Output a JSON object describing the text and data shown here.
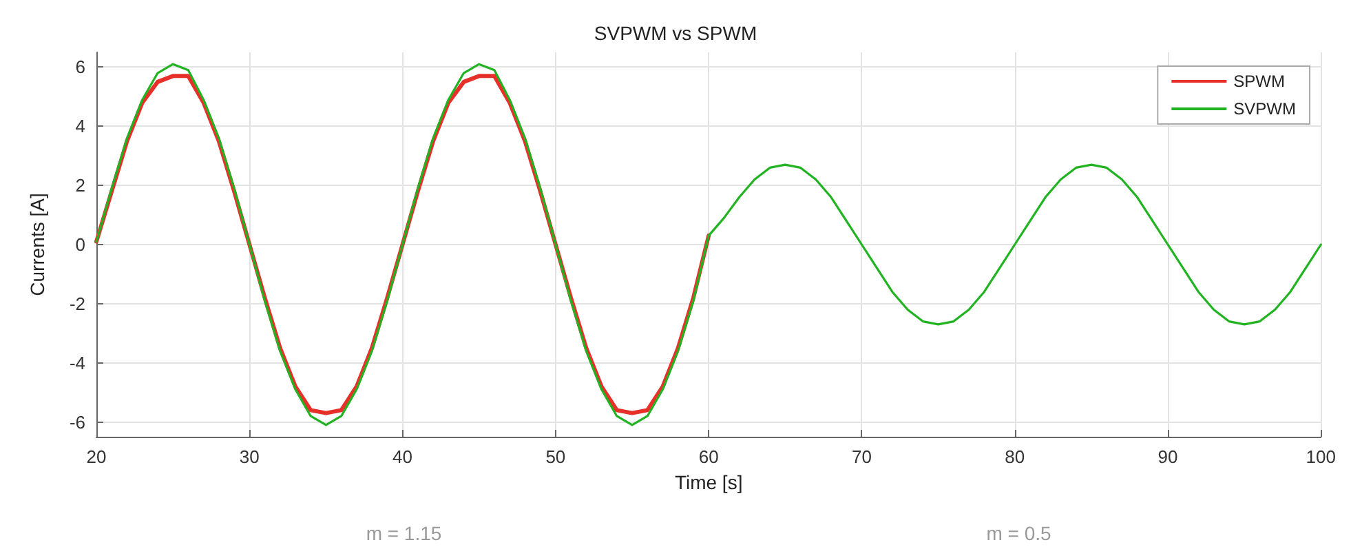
{
  "chart_data": {
    "type": "line",
    "title": "SVPWM vs SPWM",
    "xlabel": "Time [s]",
    "ylabel": "Currents [A]",
    "x": [
      20,
      21,
      22,
      23,
      24,
      25,
      26,
      27,
      28,
      29,
      30,
      31,
      32,
      33,
      34,
      35,
      36,
      37,
      38,
      39,
      40,
      41,
      42,
      43,
      44,
      45,
      46,
      47,
      48,
      49,
      50,
      51,
      52,
      53,
      54,
      55,
      56,
      57,
      58,
      59,
      60,
      61,
      62,
      63,
      64,
      65,
      66,
      67,
      68,
      69,
      70,
      71,
      72,
      73,
      74,
      75,
      76,
      77,
      78,
      79,
      80,
      81,
      82,
      83,
      84,
      85,
      86,
      87,
      88,
      89,
      90,
      91,
      92,
      93,
      94,
      95,
      96,
      97,
      98,
      99,
      100
    ],
    "series": [
      {
        "name": "SPWM",
        "color": "#e8302a",
        "values": [
          0.1,
          1.8,
          3.5,
          4.8,
          5.5,
          5.7,
          5.7,
          4.8,
          3.5,
          1.8,
          0,
          -1.8,
          -3.5,
          -4.8,
          -5.6,
          -5.7,
          -5.6,
          -4.8,
          -3.5,
          -1.8,
          0,
          1.8,
          3.5,
          4.8,
          5.5,
          5.7,
          5.7,
          4.8,
          3.5,
          1.8,
          0,
          -1.8,
          -3.5,
          -4.8,
          -5.6,
          -5.7,
          -5.6,
          -4.8,
          -3.5,
          -1.8,
          0.3,
          null,
          null,
          null,
          null,
          null,
          null,
          null,
          null,
          null,
          null,
          null,
          null,
          null,
          null,
          null,
          null,
          null,
          null,
          null,
          null,
          null,
          null,
          null,
          null,
          null,
          null,
          null,
          null,
          null,
          null,
          null,
          null,
          null,
          null,
          null,
          null,
          null,
          null,
          null,
          null
        ]
      },
      {
        "name": "SVPWM",
        "color": "#22b322",
        "values": [
          0.1,
          1.9,
          3.6,
          4.9,
          5.8,
          6.1,
          5.9,
          4.9,
          3.6,
          1.9,
          0,
          -1.9,
          -3.6,
          -4.9,
          -5.8,
          -6.1,
          -5.8,
          -4.9,
          -3.6,
          -1.9,
          0,
          1.9,
          3.6,
          4.9,
          5.8,
          6.1,
          5.9,
          4.9,
          3.6,
          1.9,
          0,
          -1.9,
          -3.6,
          -4.9,
          -5.8,
          -6.1,
          -5.8,
          -4.9,
          -3.6,
          -1.9,
          0.3,
          0.9,
          1.6,
          2.2,
          2.6,
          2.7,
          2.6,
          2.2,
          1.6,
          0.8,
          0,
          -0.8,
          -1.6,
          -2.2,
          -2.6,
          -2.7,
          -2.6,
          -2.2,
          -1.6,
          -0.8,
          0,
          0.8,
          1.6,
          2.2,
          2.6,
          2.7,
          2.6,
          2.2,
          1.6,
          0.8,
          0,
          -0.8,
          -1.6,
          -2.2,
          -2.6,
          -2.7,
          -2.6,
          -2.2,
          -1.6,
          -0.8,
          0
        ]
      }
    ],
    "xlim": [
      20,
      100
    ],
    "xticks": [
      20,
      30,
      40,
      50,
      60,
      70,
      80,
      90,
      100
    ],
    "ylim": [
      -6.5,
      6.5
    ],
    "yticks": [
      -6,
      -4,
      -2,
      0,
      2,
      4,
      6
    ],
    "grid": true,
    "legend": "top right",
    "line_style": "solid",
    "marker": "none",
    "annotations": [
      "m = 1.15",
      "m = 0.5"
    ]
  }
}
